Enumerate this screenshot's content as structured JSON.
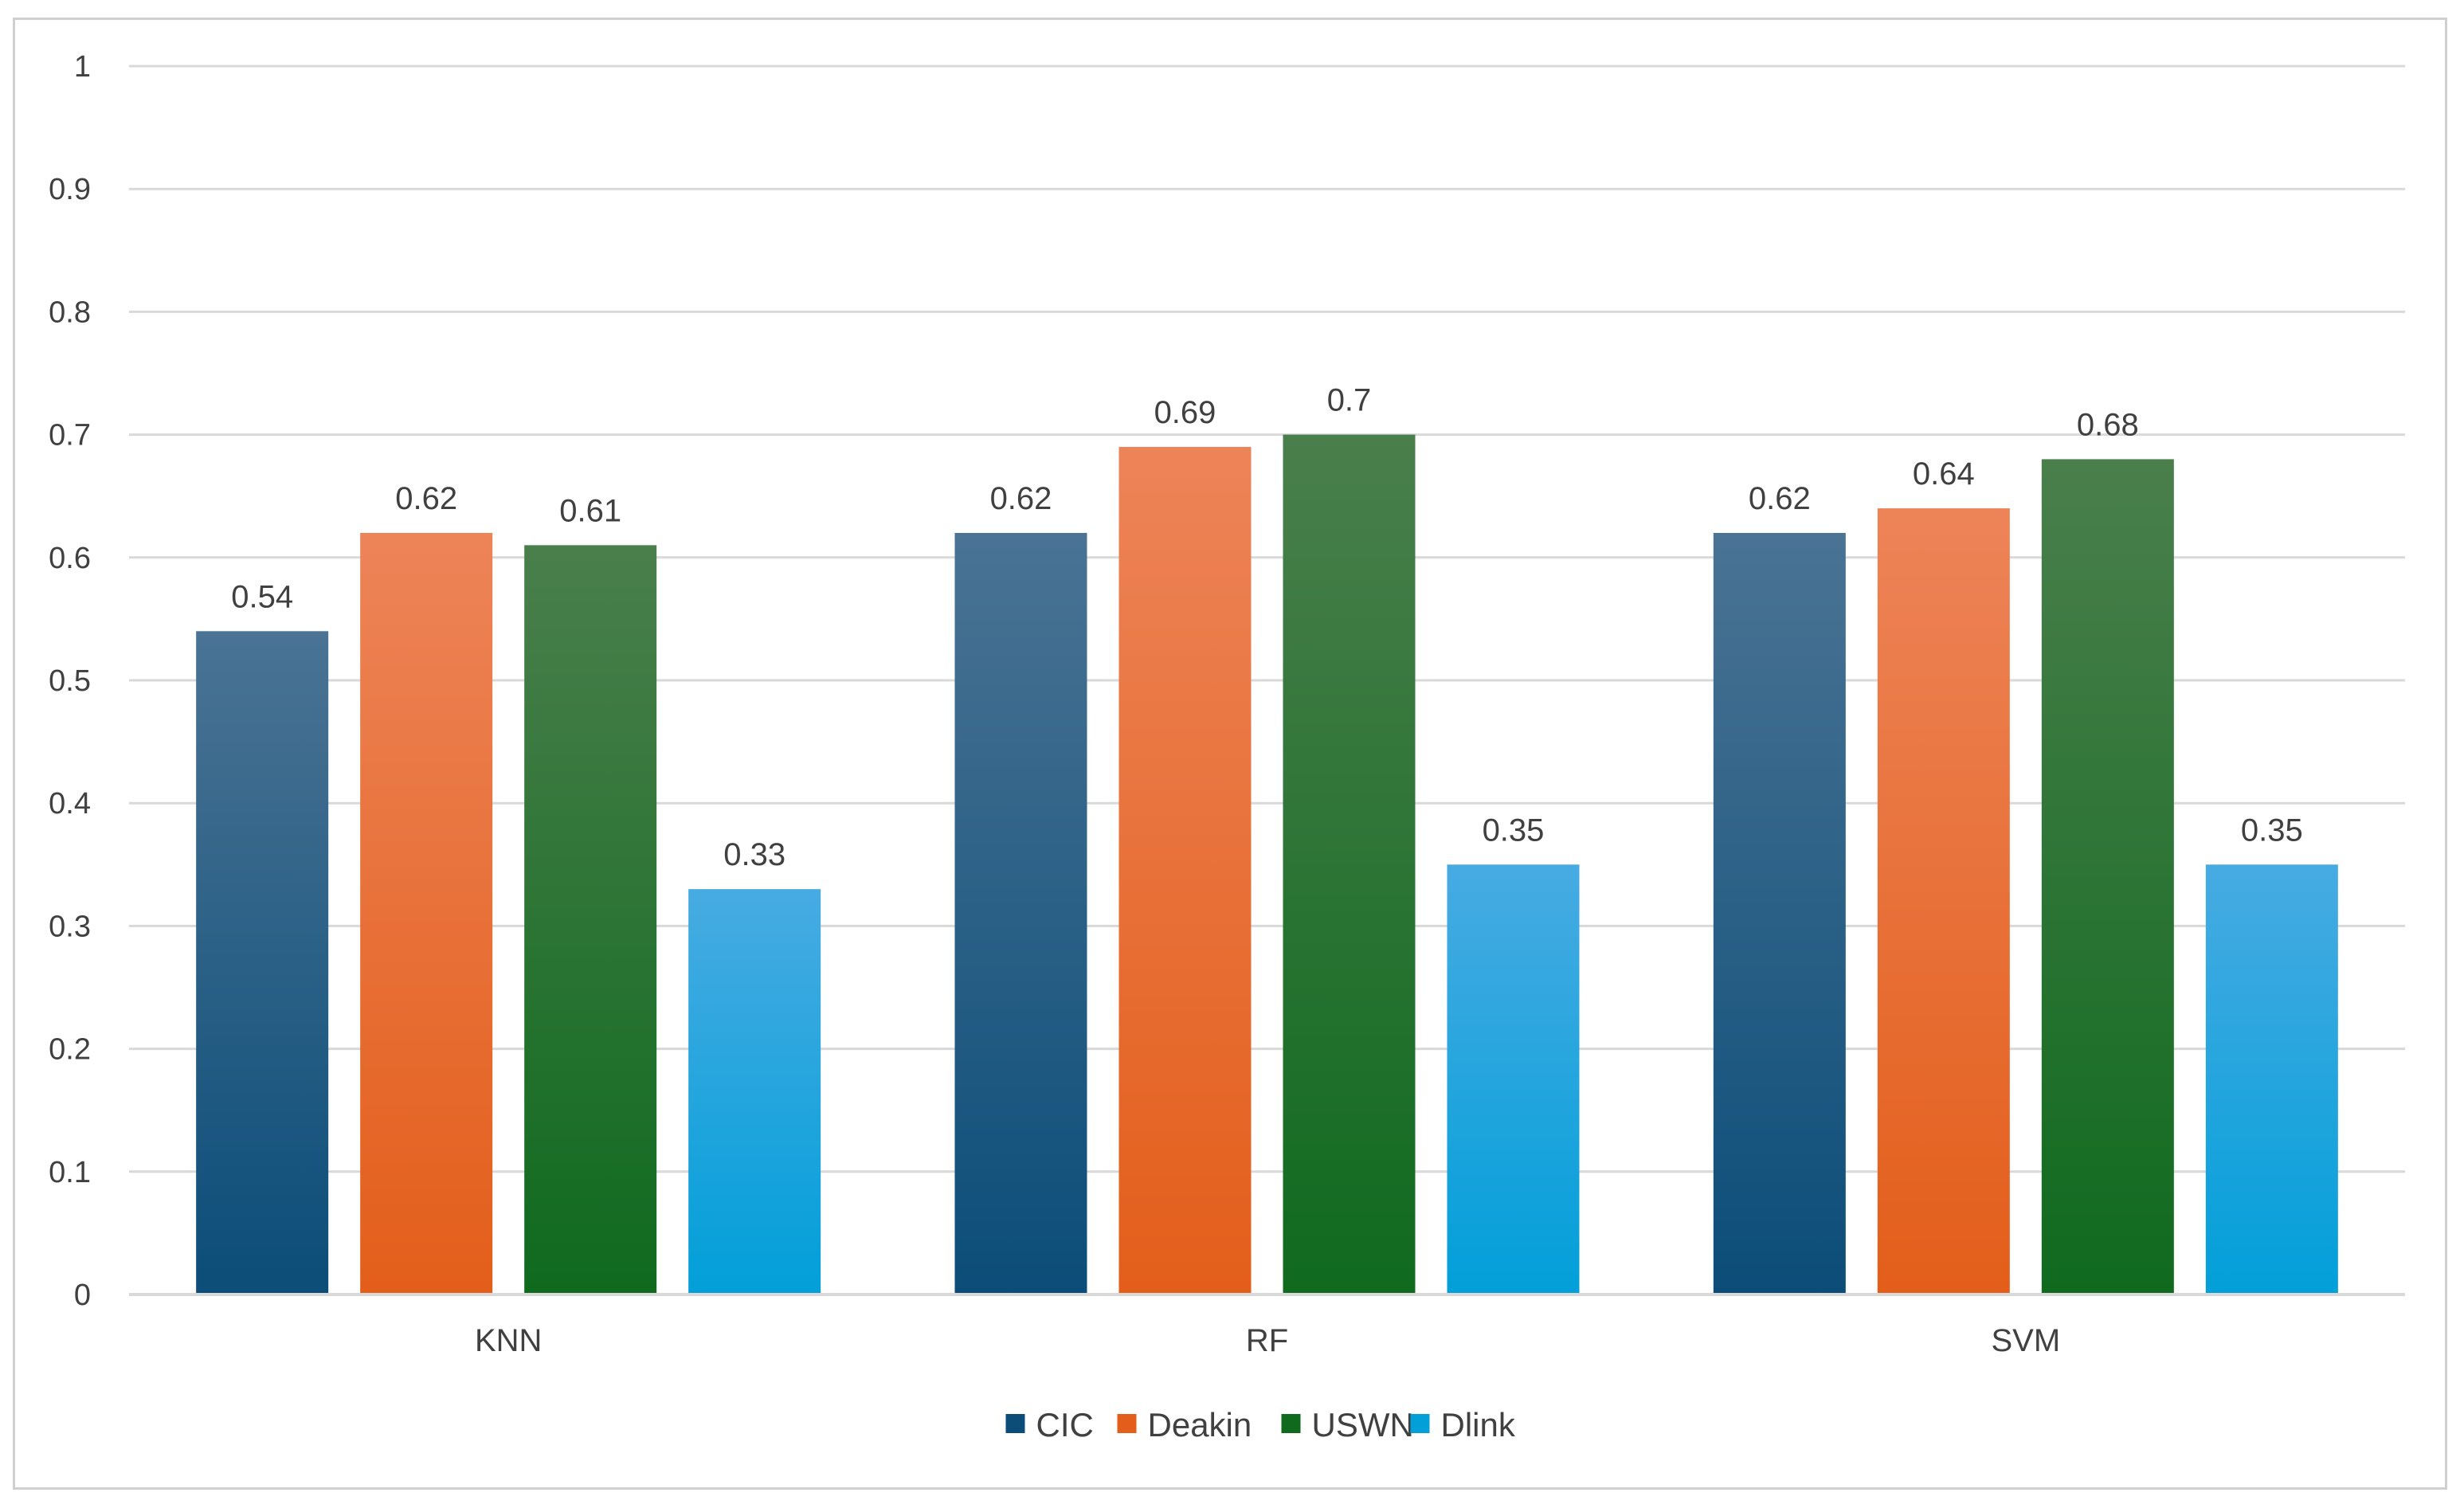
{
  "chart_data": {
    "type": "bar",
    "title": "",
    "xlabel": "",
    "ylabel": "",
    "categories": [
      "KNN",
      "RF",
      "SVM"
    ],
    "series": [
      {
        "name": "CIC",
        "values": [
          0.54,
          0.62,
          0.62
        ],
        "color_top": "#4a7394",
        "color_bottom": "#0b4d78"
      },
      {
        "name": "Deakin",
        "values": [
          0.62,
          0.69,
          0.64
        ],
        "color_top": "#ed8458",
        "color_bottom": "#e35e1a"
      },
      {
        "name": "USWN",
        "values": [
          0.61,
          0.7,
          0.68
        ],
        "color_top": "#4a7f4c",
        "color_bottom": "#0f6a1e"
      },
      {
        "name": "Dlink",
        "values": [
          0.33,
          0.35,
          0.35
        ],
        "color_top": "#47abe2",
        "color_bottom": "#029fd9"
      }
    ],
    "data_labels": [
      [
        "0.54",
        "0.62",
        "0.62"
      ],
      [
        "0.62",
        "0.69",
        "0.64"
      ],
      [
        "0.61",
        "0.7",
        "0.68"
      ],
      [
        "0.33",
        "0.35",
        "0.35"
      ]
    ],
    "ylim": [
      0,
      1
    ],
    "yticks": [
      0,
      0.1,
      0.2,
      0.3,
      0.4,
      0.5,
      0.6,
      0.7,
      0.8,
      0.9,
      1
    ],
    "ytick_labels": [
      "0",
      "0.1",
      "0.2",
      "0.3",
      "0.4",
      "0.5",
      "0.6",
      "0.7",
      "0.8",
      "0.9",
      "1"
    ],
    "grid": true,
    "grid_color": "#d9d9d9",
    "text_color": "#404040",
    "legend": "bottom"
  }
}
